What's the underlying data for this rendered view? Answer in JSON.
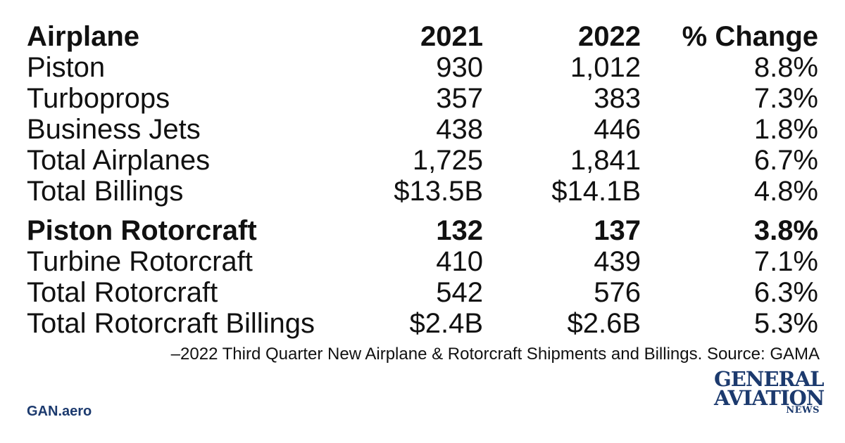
{
  "chart_data": {
    "type": "table",
    "columns": [
      "Airplane",
      "2021",
      "2022",
      "% Change"
    ],
    "rows": [
      [
        "Piston",
        "930",
        "1,012",
        "8.8%"
      ],
      [
        "Turboprops",
        "357",
        "383",
        "7.3%"
      ],
      [
        "Business Jets",
        "438",
        "446",
        "1.8%"
      ],
      [
        "Total Airplanes",
        "1,725",
        "1,841",
        "6.7%"
      ],
      [
        "Total Billings",
        "$13.5B",
        "$14.1B",
        "4.8%"
      ],
      [
        "Piston Rotorcraft",
        "132",
        "137",
        "3.8%"
      ],
      [
        "Turbine Rotorcraft",
        "410",
        "439",
        "7.1%"
      ],
      [
        "Total Rotorcraft",
        "542",
        "576",
        "6.3%"
      ],
      [
        "Total Rotorcraft Billings",
        "$2.4B",
        "$2.6B",
        "5.3%"
      ]
    ],
    "bold_rows": [
      5
    ]
  },
  "source": "–2022 Third Quarter New Airplane & Rotorcraft Shipments and Billings. Source: GAMA",
  "site": "GAN.aero",
  "logo": {
    "line1": "GENERAL",
    "line2": "AVIATION",
    "line3": "NEWS"
  },
  "colors": {
    "text": "#111111",
    "brand": "#1c3a6e"
  }
}
